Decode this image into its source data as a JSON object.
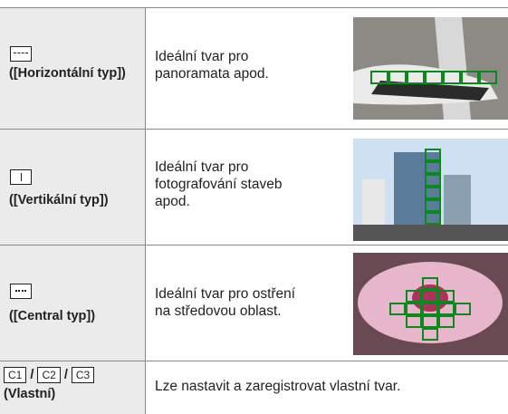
{
  "table": {
    "rows": [
      {
        "label": "([Horizontální typ])",
        "description": [
          "Ideální tvar pro",
          "panoramata apod."
        ]
      },
      {
        "label": "([Vertikální typ])",
        "description": [
          "Ideální tvar pro",
          "fotografování staveb",
          "apod."
        ]
      },
      {
        "label": "([Central typ])",
        "description": [
          "Ideální tvar pro ostření",
          "na středovou oblast."
        ]
      },
      {
        "icons": [
          "C1",
          "C2",
          "C3"
        ],
        "separator": "/",
        "label": "(Vlastní)",
        "description": [
          "Lze nastavit a zaregistrovat vlastní tvar."
        ]
      }
    ]
  }
}
